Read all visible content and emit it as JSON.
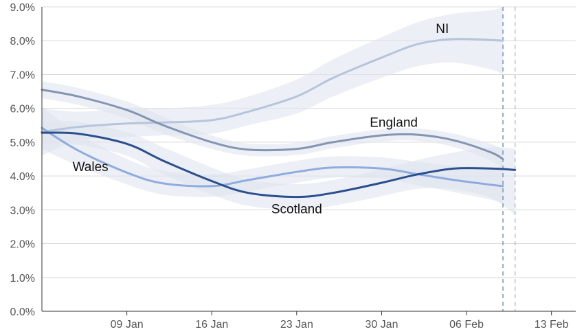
{
  "chart_data": {
    "type": "line",
    "title": "",
    "xlabel": "",
    "ylabel": "",
    "x_axis": {
      "type": "date",
      "range": [
        "2022-01-02",
        "2022-02-15"
      ],
      "ticks": [
        {
          "date": "2022-01-09",
          "label": "09 Jan"
        },
        {
          "date": "2022-01-16",
          "label": "16 Jan"
        },
        {
          "date": "2022-01-23",
          "label": "23 Jan"
        },
        {
          "date": "2022-01-30",
          "label": "30 Jan"
        },
        {
          "date": "2022-02-06",
          "label": "06 Feb"
        },
        {
          "date": "2022-02-13",
          "label": "13 Feb"
        }
      ]
    },
    "y_axis": {
      "unit": "percent",
      "ylim": [
        0,
        9
      ],
      "ticks": [
        {
          "value": 0,
          "label": "0.0%"
        },
        {
          "value": 1,
          "label": "1.0%"
        },
        {
          "value": 2,
          "label": "2.0%"
        },
        {
          "value": 3,
          "label": "3.0%"
        },
        {
          "value": 4,
          "label": "4.0%"
        },
        {
          "value": 5,
          "label": "5.0%"
        },
        {
          "value": 6,
          "label": "6.0%"
        },
        {
          "value": 7,
          "label": "7.0%"
        },
        {
          "value": 8,
          "label": "8.0%"
        },
        {
          "value": 9,
          "label": "9.0%"
        }
      ]
    },
    "grid": true,
    "legend": "none",
    "reference_lines": [
      {
        "date": "2022-02-09",
        "style": "dashed",
        "color": "#7f93b5"
      },
      {
        "date": "2022-02-10",
        "style": "dashed",
        "color": "#b8c1d3"
      }
    ],
    "series": [
      {
        "name": "NI",
        "color": "#b6c4dc",
        "x": [
          "2022-01-02",
          "2022-01-05",
          "2022-01-09",
          "2022-01-12",
          "2022-01-16",
          "2022-01-19",
          "2022-01-23",
          "2022-01-26",
          "2022-01-30",
          "2022-02-02",
          "2022-02-05",
          "2022-02-08",
          "2022-02-09"
        ],
        "y": [
          5.3,
          5.45,
          5.55,
          5.58,
          5.65,
          5.9,
          6.35,
          6.9,
          7.5,
          7.9,
          8.05,
          8.02,
          8.0
        ],
        "lower": [
          4.6,
          5.05,
          5.15,
          5.2,
          5.25,
          5.5,
          5.85,
          6.35,
          6.9,
          7.25,
          7.35,
          7.15,
          7.0
        ],
        "upper": [
          6.0,
          5.9,
          6.0,
          6.0,
          6.1,
          6.35,
          6.85,
          7.45,
          8.1,
          8.55,
          8.8,
          8.9,
          9.0
        ]
      },
      {
        "name": "England",
        "color": "#8494b3",
        "x": [
          "2022-01-02",
          "2022-01-05",
          "2022-01-09",
          "2022-01-12",
          "2022-01-16",
          "2022-01-19",
          "2022-01-23",
          "2022-01-26",
          "2022-01-30",
          "2022-02-02",
          "2022-02-05",
          "2022-02-08",
          "2022-02-09"
        ],
        "y": [
          6.55,
          6.35,
          5.95,
          5.5,
          5.0,
          4.78,
          4.8,
          5.0,
          5.2,
          5.22,
          5.05,
          4.7,
          4.5
        ],
        "lower": [
          6.3,
          6.1,
          5.7,
          5.25,
          4.8,
          4.6,
          4.62,
          4.82,
          5.02,
          5.04,
          4.85,
          4.45,
          4.2
        ],
        "upper": [
          6.8,
          6.6,
          6.2,
          5.75,
          5.2,
          4.96,
          4.98,
          5.18,
          5.38,
          5.4,
          5.25,
          4.95,
          4.8
        ]
      },
      {
        "name": "Wales",
        "color": "#8fabdf",
        "x": [
          "2022-01-02",
          "2022-01-05",
          "2022-01-09",
          "2022-01-12",
          "2022-01-16",
          "2022-01-19",
          "2022-01-23",
          "2022-01-26",
          "2022-01-30",
          "2022-02-02",
          "2022-02-05",
          "2022-02-08",
          "2022-02-09"
        ],
        "y": [
          5.42,
          4.75,
          4.1,
          3.78,
          3.7,
          3.88,
          4.12,
          4.25,
          4.22,
          4.05,
          3.88,
          3.74,
          3.7
        ],
        "lower": [
          4.8,
          4.3,
          3.75,
          3.45,
          3.38,
          3.55,
          3.8,
          3.95,
          3.92,
          3.72,
          3.52,
          3.3,
          3.2
        ],
        "upper": [
          6.05,
          5.25,
          4.5,
          4.15,
          4.05,
          4.2,
          4.45,
          4.58,
          4.55,
          4.42,
          4.3,
          4.25,
          4.2
        ]
      },
      {
        "name": "Scotland",
        "color": "#2a4f8f",
        "x": [
          "2022-01-02",
          "2022-01-05",
          "2022-01-09",
          "2022-01-12",
          "2022-01-16",
          "2022-01-19",
          "2022-01-23",
          "2022-01-26",
          "2022-01-30",
          "2022-02-02",
          "2022-02-05",
          "2022-02-08",
          "2022-02-10"
        ],
        "y": [
          5.28,
          5.25,
          4.95,
          4.45,
          3.85,
          3.5,
          3.38,
          3.5,
          3.8,
          4.05,
          4.22,
          4.22,
          4.18
        ],
        "lower": [
          4.95,
          4.92,
          4.6,
          4.05,
          3.45,
          3.12,
          3.0,
          3.12,
          3.4,
          3.62,
          3.6,
          3.35,
          2.85
        ],
        "upper": [
          5.6,
          5.6,
          5.3,
          4.85,
          4.25,
          3.88,
          3.76,
          3.88,
          4.2,
          4.48,
          4.7,
          4.85,
          4.8
        ]
      }
    ]
  }
}
